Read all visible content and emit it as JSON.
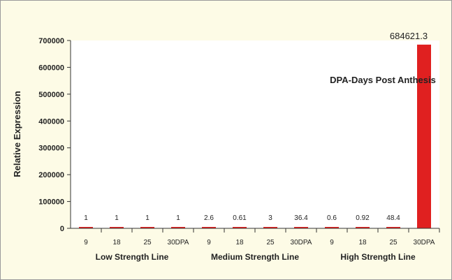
{
  "chart_data": {
    "type": "bar",
    "title": "",
    "xlabel": "",
    "ylabel": "Relative Expression",
    "ylim": [
      0,
      700000
    ],
    "yticks": [
      0,
      100000,
      200000,
      300000,
      400000,
      500000,
      600000,
      700000
    ],
    "grid": false,
    "annotation": "DPA-Days Post Anthesis",
    "bar_color": "#e02020",
    "groups": [
      {
        "name": "Low Strength Line",
        "categories": [
          "9",
          "18",
          "25",
          "30DPA"
        ]
      },
      {
        "name": "Medium Strength Line",
        "categories": [
          "9",
          "18",
          "25",
          "30DPA"
        ]
      },
      {
        "name": "High Strength Line",
        "categories": [
          "9",
          "18",
          "25",
          "30DPA"
        ]
      }
    ],
    "categories": [
      "9",
      "18",
      "25",
      "30DPA",
      "9",
      "18",
      "25",
      "30DPA",
      "9",
      "18",
      "25",
      "30DPA"
    ],
    "values": [
      1,
      1,
      1,
      1,
      2.6,
      0.61,
      3,
      36.4,
      0.6,
      0.92,
      48.4,
      684621.3
    ],
    "value_labels": [
      "1",
      "1",
      "1",
      "1",
      "2.6",
      "0.61",
      "3",
      "36.4",
      "0.6",
      "0.92",
      "48.4",
      "684621.3"
    ]
  }
}
